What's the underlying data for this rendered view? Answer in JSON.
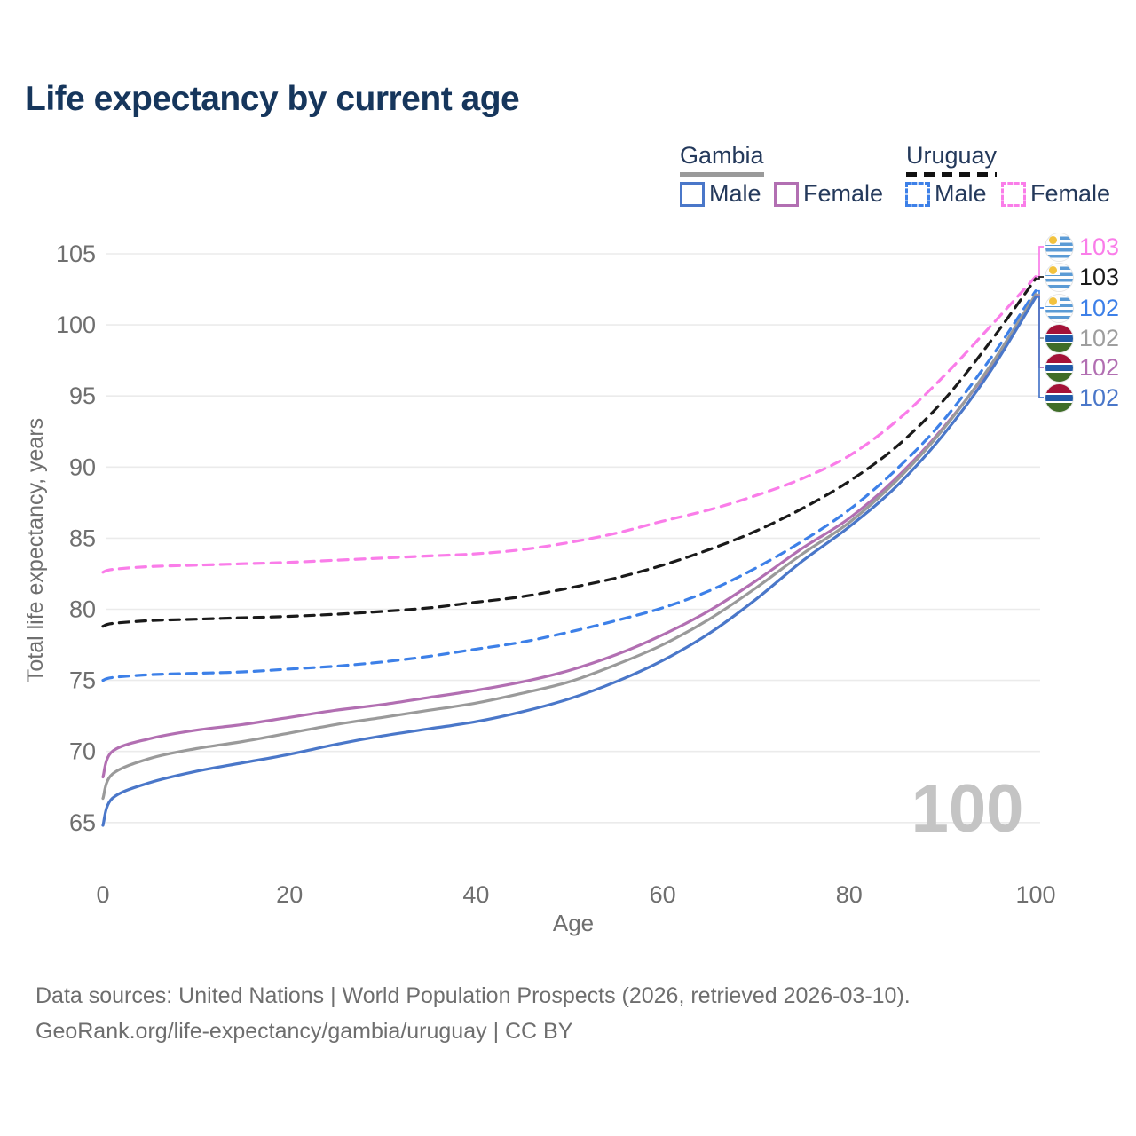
{
  "title": "Life expectancy by current age",
  "legend": {
    "groups": [
      {
        "label": "Gambia",
        "line_style": "solid",
        "line_color": "#9a9a9a"
      },
      {
        "label": "Uruguay",
        "line_style": "dashed",
        "line_color": "#111111"
      }
    ],
    "items": [
      {
        "label": "Male",
        "country": "Gambia",
        "swatch_color": "#4a77c9",
        "swatch_style": "solid"
      },
      {
        "label": "Female",
        "country": "Gambia",
        "swatch_color": "#b26fb2",
        "swatch_style": "solid"
      },
      {
        "label": "Male",
        "country": "Uruguay",
        "swatch_color": "#3d80e8",
        "swatch_style": "dashed"
      },
      {
        "label": "Female",
        "country": "Uruguay",
        "swatch_color": "#fa7de9",
        "swatch_style": "dashed"
      }
    ]
  },
  "chart_data": {
    "type": "line",
    "title": "Life expectancy by current age",
    "xlabel": "Age",
    "ylabel": "Total life expectancy, years",
    "xlim": [
      0,
      100
    ],
    "ylim": [
      63,
      106.5
    ],
    "xticks": [
      0,
      20,
      40,
      60,
      80,
      100
    ],
    "yticks": [
      65,
      70,
      75,
      80,
      85,
      90,
      95,
      100,
      105
    ],
    "grid": "horizontal",
    "legend_position": "top-right",
    "x": [
      0,
      1,
      5,
      10,
      15,
      20,
      25,
      30,
      35,
      40,
      45,
      50,
      55,
      60,
      65,
      70,
      75,
      80,
      85,
      90,
      95,
      100
    ],
    "series": [
      {
        "id": "uruguay-female",
        "name": "Uruguay Female",
        "color": "#fa7de9",
        "dashed": true,
        "values": [
          82.6,
          82.8,
          83.0,
          83.1,
          83.2,
          83.3,
          83.45,
          83.6,
          83.75,
          83.9,
          84.2,
          84.7,
          85.35,
          86.2,
          87.0,
          88.0,
          89.2,
          90.8,
          93.2,
          96.3,
          99.8,
          103.4
        ]
      },
      {
        "id": "uruguay-both",
        "name": "Uruguay Both sexes",
        "color": "#1a1a1a",
        "dashed": true,
        "values": [
          78.8,
          79.0,
          79.2,
          79.3,
          79.4,
          79.5,
          79.65,
          79.85,
          80.1,
          80.5,
          80.9,
          81.5,
          82.2,
          83.1,
          84.2,
          85.5,
          87.1,
          89.0,
          91.4,
          94.6,
          98.7,
          103.25
        ]
      },
      {
        "id": "uruguay-male",
        "name": "Uruguay Male",
        "color": "#3d80e8",
        "dashed": true,
        "values": [
          75.0,
          75.2,
          75.4,
          75.5,
          75.6,
          75.8,
          76.0,
          76.3,
          76.7,
          77.2,
          77.7,
          78.4,
          79.2,
          80.1,
          81.3,
          82.9,
          84.8,
          87.0,
          89.8,
          93.2,
          97.5,
          102.4
        ]
      },
      {
        "id": "gambia-female",
        "name": "Gambia Female",
        "color": "#b26fb2",
        "dashed": false,
        "values": [
          68.2,
          70.0,
          70.9,
          71.5,
          71.9,
          72.4,
          72.9,
          73.3,
          73.8,
          74.3,
          74.9,
          75.7,
          76.8,
          78.2,
          79.9,
          82.0,
          84.3,
          86.4,
          89.2,
          92.7,
          96.9,
          102.05
        ]
      },
      {
        "id": "gambia-both",
        "name": "Gambia Both sexes",
        "color": "#9a9a9a",
        "dashed": false,
        "values": [
          66.7,
          68.4,
          69.5,
          70.2,
          70.7,
          71.3,
          71.9,
          72.4,
          72.9,
          73.4,
          74.1,
          74.9,
          76.1,
          77.5,
          79.3,
          81.5,
          83.9,
          86.1,
          89.0,
          92.6,
          97.0,
          102.15
        ]
      },
      {
        "id": "gambia-male",
        "name": "Gambia Male",
        "color": "#4a77c9",
        "dashed": false,
        "values": [
          64.8,
          66.7,
          67.8,
          68.6,
          69.2,
          69.8,
          70.5,
          71.1,
          71.6,
          72.1,
          72.8,
          73.7,
          74.9,
          76.4,
          78.3,
          80.7,
          83.4,
          85.8,
          88.6,
          92.2,
          96.6,
          101.95
        ]
      }
    ],
    "end_labels": [
      {
        "series": "uruguay-female",
        "flag": "uruguay",
        "value": "103",
        "color": "#fa7de9"
      },
      {
        "series": "uruguay-both",
        "flag": "uruguay",
        "value": "103",
        "color": "#1a1a1a"
      },
      {
        "series": "uruguay-male",
        "flag": "uruguay",
        "value": "102",
        "color": "#3d80e8"
      },
      {
        "series": "gambia-both",
        "flag": "gambia",
        "value": "102",
        "color": "#9e9e9e"
      },
      {
        "series": "gambia-female",
        "flag": "gambia",
        "value": "102",
        "color": "#b26fb2"
      },
      {
        "series": "gambia-male",
        "flag": "gambia",
        "value": "102",
        "color": "#4a77c9"
      }
    ]
  },
  "watermark": "100",
  "footer": {
    "line1": "Data sources: United Nations | World Population Prospects (2026, retrieved 2026-03-10).",
    "line2": "GeoRank.org/life-expectancy/gambia/uruguay | CC BY"
  }
}
